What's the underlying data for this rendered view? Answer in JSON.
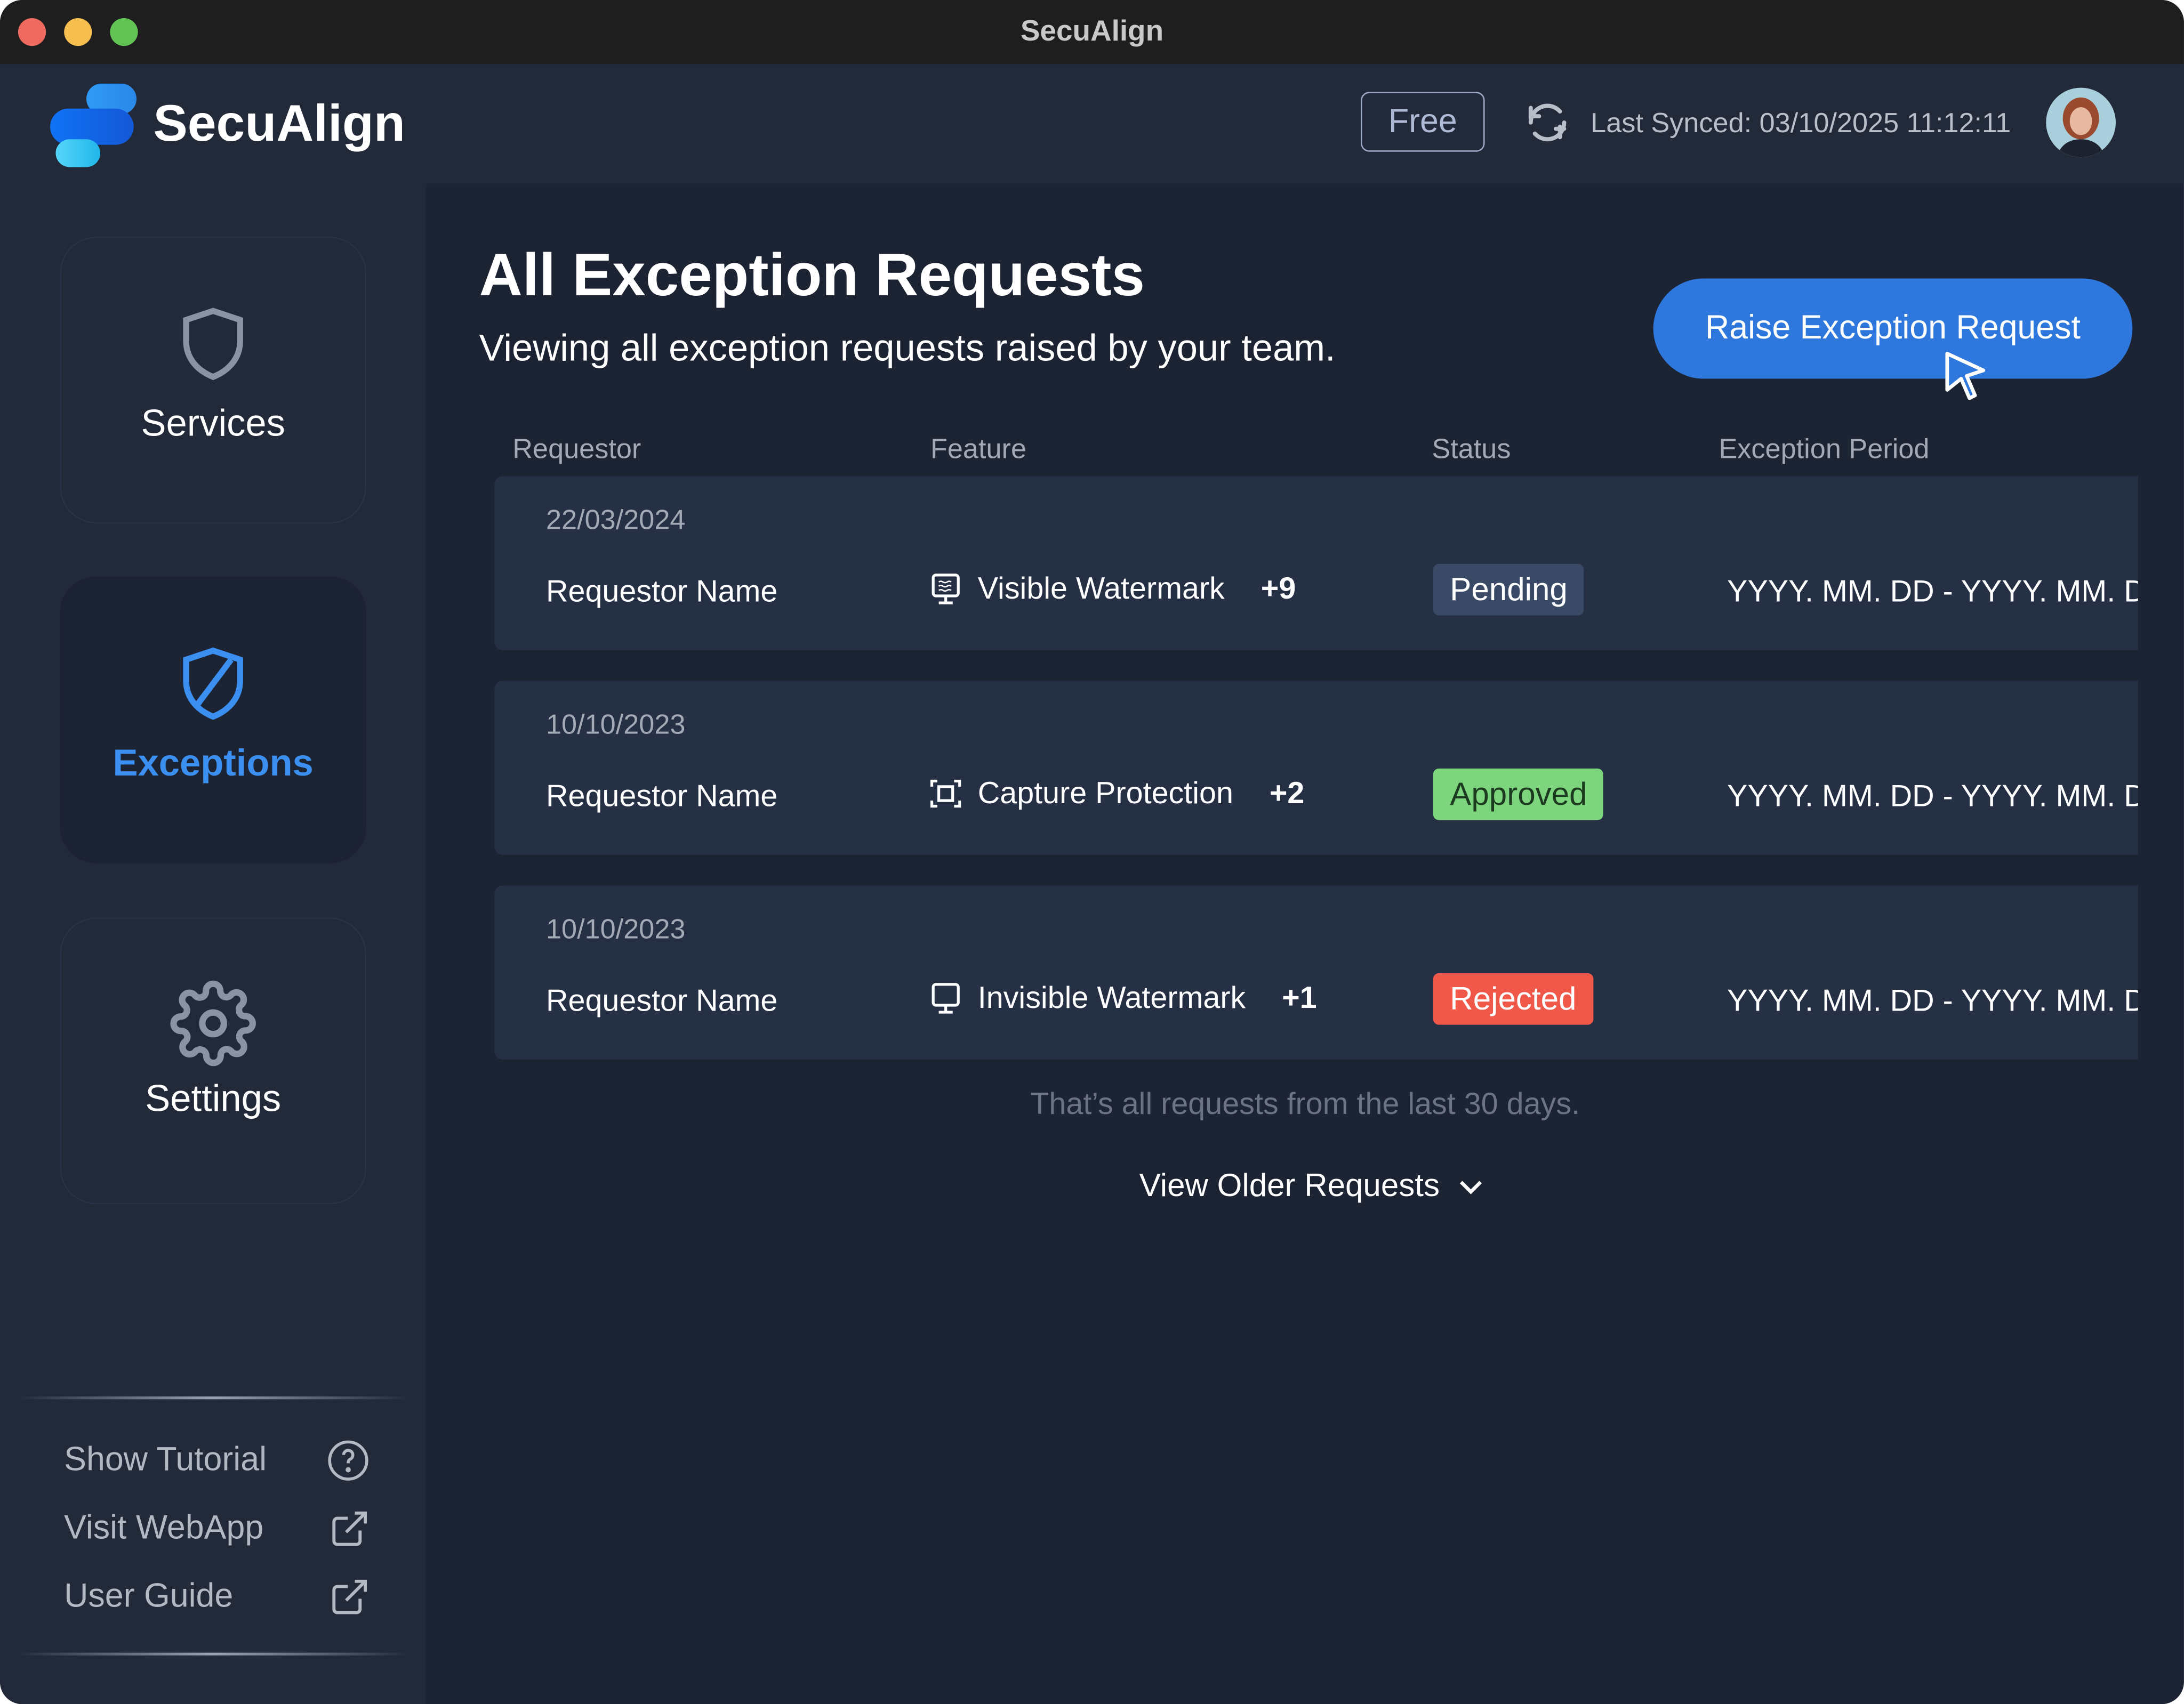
{
  "window": {
    "title": "SecuAlign"
  },
  "header": {
    "brand": "SecuAlign",
    "plan": "Free",
    "last_synced": "Last Synced: 03/10/2025 11:12:11"
  },
  "sidebar": {
    "items": [
      {
        "label": "Services",
        "icon": "shield-icon"
      },
      {
        "label": "Exceptions",
        "icon": "shield-slash-icon",
        "active": true
      },
      {
        "label": "Settings",
        "icon": "gear-icon"
      }
    ],
    "footer": [
      {
        "label": "Show Tutorial",
        "icon": "help-circle-icon"
      },
      {
        "label": "Visit WebApp",
        "icon": "external-link-icon"
      },
      {
        "label": "User Guide",
        "icon": "external-link-icon"
      }
    ]
  },
  "main": {
    "title": "All Exception Requests",
    "subtitle": "Viewing all exception requests raised by your team.",
    "raise_button": "Raise Exception Request",
    "columns": [
      "Requestor",
      "Feature",
      "Status",
      "Exception Period"
    ],
    "rows": [
      {
        "date": "22/03/2024",
        "requestor": "Requestor Name",
        "feature": "Visible Watermark",
        "feature_icon": "monitor-watermark-icon",
        "more": "+9",
        "status": "Pending",
        "period": "YYYY. MM. DD  -  YYYY. MM. DD"
      },
      {
        "date": "10/10/2023",
        "requestor": "Requestor Name",
        "feature": "Capture Protection",
        "feature_icon": "capture-frame-icon",
        "more": "+2",
        "status": "Approved",
        "period": "YYYY. MM. DD  -  YYYY. MM. DD"
      },
      {
        "date": "10/10/2023",
        "requestor": "Requestor Name",
        "feature": "Invisible Watermark",
        "feature_icon": "monitor-icon",
        "more": "+1",
        "status": "Rejected",
        "period": "YYYY. MM. DD  -  YYYY. MM. DD"
      }
    ],
    "end_message": "That’s all requests from the last 30 days.",
    "view_older": "View Older Requests"
  },
  "colors": {
    "accent": "#2e78dd",
    "pending": "#3a4a66",
    "approved": "#7dd67e",
    "rejected": "#f0584a"
  }
}
